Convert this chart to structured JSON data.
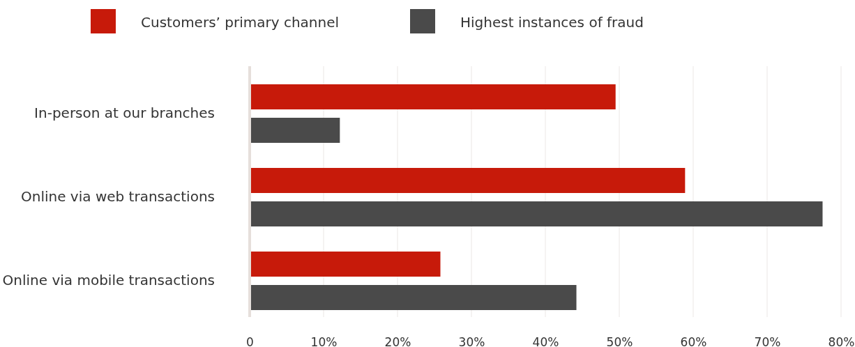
{
  "chart_data": {
    "type": "bar",
    "orientation": "horizontal",
    "categories": [
      "In-person at our branches",
      "Online via web transactions",
      "Online via mobile transactions"
    ],
    "series": [
      {
        "name": "Customers’ primary channel",
        "color": "#c71a0a",
        "values": [
          49.5,
          58.9,
          25.8
        ]
      },
      {
        "name": "Highest instances of fraud",
        "color": "#4a4a4a",
        "values": [
          12.2,
          77.5,
          44.2
        ]
      }
    ],
    "xlim": [
      0,
      80
    ],
    "xticks": [
      {
        "value": 0,
        "label": "0"
      },
      {
        "value": 10,
        "label": "10%"
      },
      {
        "value": 20,
        "label": "20%"
      },
      {
        "value": 30,
        "label": "30%"
      },
      {
        "value": 40,
        "label": "40%"
      },
      {
        "value": 50,
        "label": "50%"
      },
      {
        "value": 60,
        "label": "60%"
      },
      {
        "value": 70,
        "label": "70%"
      },
      {
        "value": 80,
        "label": "80%"
      }
    ],
    "grid": "x",
    "legend": "top"
  }
}
